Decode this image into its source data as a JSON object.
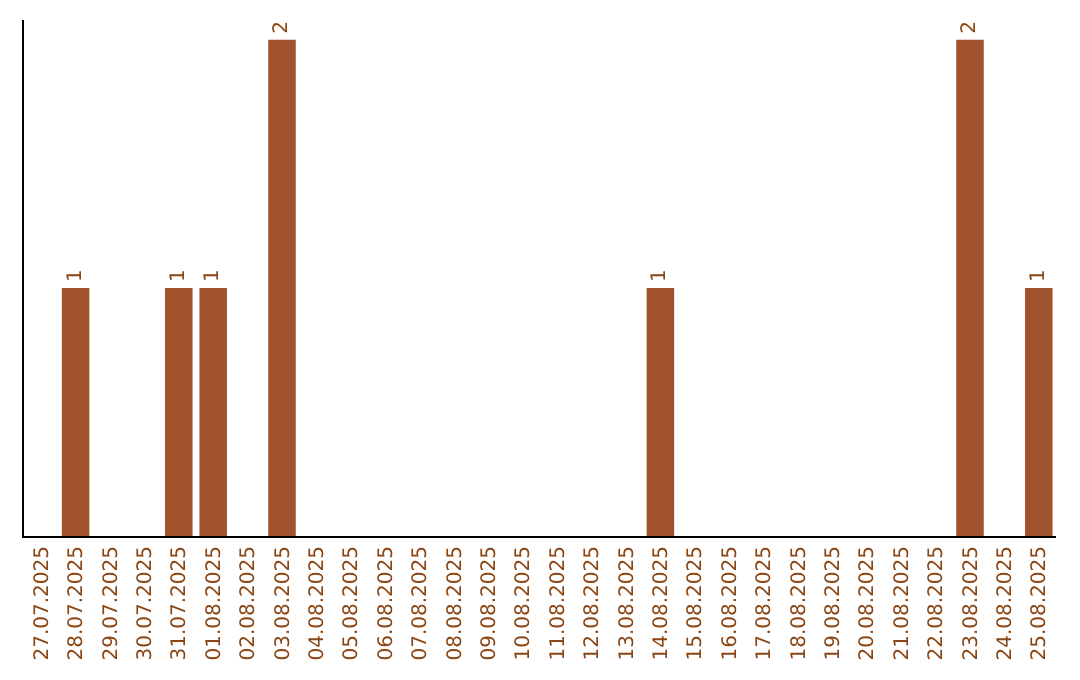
{
  "chart_data": {
    "type": "bar",
    "categories": [
      "27.07.2025",
      "28.07.2025",
      "29.07.2025",
      "30.07.2025",
      "31.07.2025",
      "01.08.2025",
      "02.08.2025",
      "03.08.2025",
      "04.08.2025",
      "05.08.2025",
      "06.08.2025",
      "07.08.2025",
      "08.08.2025",
      "09.08.2025",
      "10.08.2025",
      "11.08.2025",
      "12.08.2025",
      "13.08.2025",
      "14.08.2025",
      "15.08.2025",
      "16.08.2025",
      "17.08.2025",
      "18.08.2025",
      "19.08.2025",
      "20.08.2025",
      "21.08.2025",
      "22.08.2025",
      "23.08.2025",
      "24.08.2025",
      "25.08.2025"
    ],
    "values": [
      0,
      1,
      0,
      0,
      1,
      1,
      0,
      2,
      0,
      0,
      0,
      0,
      0,
      0,
      0,
      0,
      0,
      0,
      1,
      0,
      0,
      0,
      0,
      0,
      0,
      0,
      0,
      2,
      0,
      1
    ],
    "value_labels": [
      null,
      "1",
      null,
      null,
      "1",
      "1",
      null,
      "2",
      null,
      null,
      null,
      null,
      null,
      null,
      null,
      null,
      null,
      null,
      "1",
      null,
      null,
      null,
      null,
      null,
      null,
      null,
      null,
      "2",
      null,
      "1"
    ],
    "color": "#a0522d",
    "ylim": [
      0,
      2.08
    ],
    "tick_labels": "x",
    "legend": false
  }
}
